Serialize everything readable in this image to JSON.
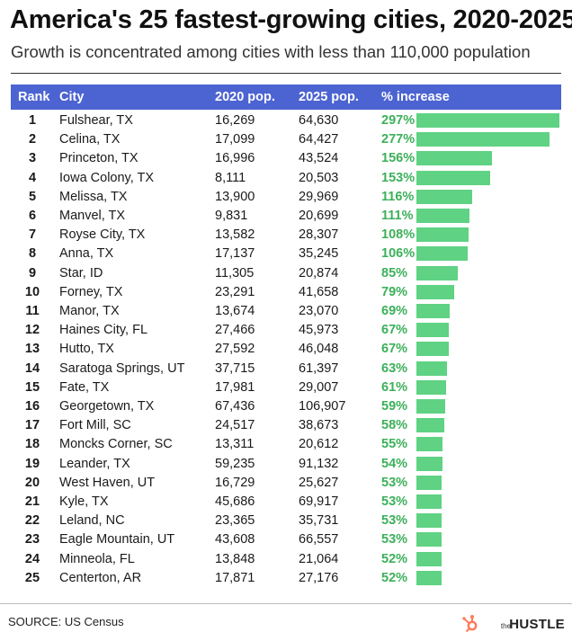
{
  "title": "America's 25 fastest-growing cities, 2020-2025",
  "subtitle": "Growth is concentrated among cities with less than 110,000 population",
  "columns": {
    "rank": "Rank",
    "city": "City",
    "pop2020": "2020 pop.",
    "pop2025": "2025 pop.",
    "increase": "% increase"
  },
  "source": "SOURCE: US Census",
  "brand": {
    "the": "the",
    "name": "HUSTLE",
    "icon": "hubspot-sprocket-icon"
  },
  "colors": {
    "header_bg": "#4c63d2",
    "bar": "#5fd283",
    "percent_text": "#3cb05a",
    "brand_icon": "#ff7a59"
  },
  "chart_data": {
    "type": "table",
    "bar_max_value": 297,
    "rows": [
      {
        "rank": "1",
        "city": "Fulshear, TX",
        "pop2020": "16,269",
        "pop2025": "64,630",
        "pct_label": "297%",
        "pct": 297
      },
      {
        "rank": "2",
        "city": "Celina, TX",
        "pop2020": "17,099",
        "pop2025": "64,427",
        "pct_label": "277%",
        "pct": 277
      },
      {
        "rank": "3",
        "city": "Princeton, TX",
        "pop2020": "16,996",
        "pop2025": "43,524",
        "pct_label": "156%",
        "pct": 156
      },
      {
        "rank": "4",
        "city": "Iowa Colony, TX",
        "pop2020": "8,111",
        "pop2025": "20,503",
        "pct_label": "153%",
        "pct": 153
      },
      {
        "rank": "5",
        "city": "Melissa, TX",
        "pop2020": "13,900",
        "pop2025": "29,969",
        "pct_label": "116%",
        "pct": 116
      },
      {
        "rank": "6",
        "city": "Manvel, TX",
        "pop2020": "9,831",
        "pop2025": "20,699",
        "pct_label": "111%",
        "pct": 111
      },
      {
        "rank": "7",
        "city": "Royse City, TX",
        "pop2020": "13,582",
        "pop2025": "28,307",
        "pct_label": "108%",
        "pct": 108
      },
      {
        "rank": "8",
        "city": "Anna, TX",
        "pop2020": "17,137",
        "pop2025": "35,245",
        "pct_label": "106%",
        "pct": 106
      },
      {
        "rank": "9",
        "city": "Star, ID",
        "pop2020": "11,305",
        "pop2025": "20,874",
        "pct_label": "85%",
        "pct": 85
      },
      {
        "rank": "10",
        "city": "Forney, TX",
        "pop2020": "23,291",
        "pop2025": "41,658",
        "pct_label": "79%",
        "pct": 79
      },
      {
        "rank": "11",
        "city": "Manor, TX",
        "pop2020": "13,674",
        "pop2025": "23,070",
        "pct_label": "69%",
        "pct": 69
      },
      {
        "rank": "12",
        "city": "Haines City, FL",
        "pop2020": "27,466",
        "pop2025": "45,973",
        "pct_label": "67%",
        "pct": 67
      },
      {
        "rank": "13",
        "city": "Hutto, TX",
        "pop2020": "27,592",
        "pop2025": "46,048",
        "pct_label": "67%",
        "pct": 67
      },
      {
        "rank": "14",
        "city": "Saratoga Springs, UT",
        "pop2020": "37,715",
        "pop2025": "61,397",
        "pct_label": "63%",
        "pct": 63
      },
      {
        "rank": "15",
        "city": "Fate, TX",
        "pop2020": "17,981",
        "pop2025": "29,007",
        "pct_label": "61%",
        "pct": 61
      },
      {
        "rank": "16",
        "city": "Georgetown, TX",
        "pop2020": "67,436",
        "pop2025": "106,907",
        "pct_label": "59%",
        "pct": 59
      },
      {
        "rank": "17",
        "city": "Fort Mill, SC",
        "pop2020": "24,517",
        "pop2025": "38,673",
        "pct_label": "58%",
        "pct": 58
      },
      {
        "rank": "18",
        "city": "Moncks Corner, SC",
        "pop2020": "13,311",
        "pop2025": "20,612",
        "pct_label": "55%",
        "pct": 55
      },
      {
        "rank": "19",
        "city": "Leander, TX",
        "pop2020": "59,235",
        "pop2025": "91,132",
        "pct_label": "54%",
        "pct": 54
      },
      {
        "rank": "20",
        "city": "West Haven, UT",
        "pop2020": "16,729",
        "pop2025": "25,627",
        "pct_label": "53%",
        "pct": 53
      },
      {
        "rank": "21",
        "city": "Kyle, TX",
        "pop2020": "45,686",
        "pop2025": "69,917",
        "pct_label": "53%",
        "pct": 53
      },
      {
        "rank": "22",
        "city": "Leland, NC",
        "pop2020": "23,365",
        "pop2025": "35,731",
        "pct_label": "53%",
        "pct": 53
      },
      {
        "rank": "23",
        "city": "Eagle Mountain, UT",
        "pop2020": "43,608",
        "pop2025": "66,557",
        "pct_label": "53%",
        "pct": 53
      },
      {
        "rank": "24",
        "city": "Minneola, FL",
        "pop2020": "13,848",
        "pop2025": "21,064",
        "pct_label": "52%",
        "pct": 52
      },
      {
        "rank": "25",
        "city": "Centerton, AR",
        "pop2020": "17,871",
        "pop2025": "27,176",
        "pct_label": "52%",
        "pct": 52
      }
    ]
  }
}
